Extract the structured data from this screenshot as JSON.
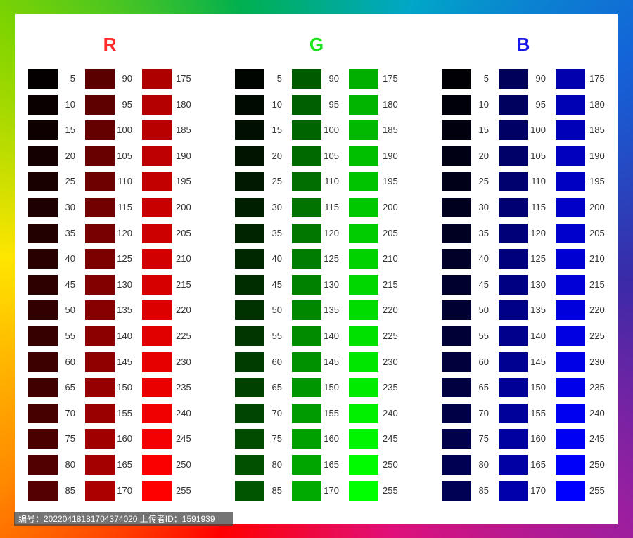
{
  "headers": [
    {
      "label": "R",
      "color": "#ff2a2a"
    },
    {
      "label": "G",
      "color": "#19e619"
    },
    {
      "label": "B",
      "color": "#1a1ae6"
    }
  ],
  "panels": [
    {
      "channel": "R",
      "columns": [
        {
          "values": [
            "5",
            "10",
            "15",
            "20",
            "25",
            "30",
            "35",
            "40",
            "45",
            "50",
            "55",
            "60",
            "65",
            "70",
            "75",
            "80",
            "85"
          ]
        },
        {
          "values": [
            "90",
            "95",
            "100",
            "105",
            "110",
            "115",
            "120",
            "125",
            "130",
            "135",
            "140",
            "145",
            "150",
            "155",
            "160",
            "165",
            "170"
          ]
        },
        {
          "values": [
            "175",
            "180",
            "185",
            "190",
            "195",
            "200",
            "205",
            "210",
            "215",
            "220",
            "225",
            "230",
            "235",
            "240",
            "245",
            "250",
            "255"
          ]
        }
      ]
    },
    {
      "channel": "G",
      "columns": [
        {
          "values": [
            "5",
            "10",
            "15",
            "20",
            "25",
            "30",
            "35",
            "40",
            "45",
            "50",
            "55",
            "60",
            "65",
            "70",
            "75",
            "80",
            "85"
          ]
        },
        {
          "values": [
            "90",
            "95",
            "100",
            "105",
            "110",
            "115",
            "120",
            "125",
            "130",
            "135",
            "140",
            "145",
            "150",
            "155",
            "160",
            "165",
            "170"
          ]
        },
        {
          "values": [
            "175",
            "180",
            "185",
            "190",
            "195",
            "200",
            "205",
            "210",
            "215",
            "220",
            "225",
            "230",
            "235",
            "240",
            "245",
            "250",
            "255"
          ]
        }
      ]
    },
    {
      "channel": "B",
      "columns": [
        {
          "values": [
            "5",
            "10",
            "15",
            "20",
            "25",
            "30",
            "35",
            "40",
            "45",
            "50",
            "55",
            "60",
            "65",
            "70",
            "75",
            "80",
            "85"
          ]
        },
        {
          "values": [
            "90",
            "95",
            "100",
            "105",
            "110",
            "115",
            "120",
            "125",
            "130",
            "135",
            "140",
            "145",
            "150",
            "155",
            "160",
            "165",
            "170"
          ]
        },
        {
          "values": [
            "175",
            "180",
            "185",
            "190",
            "195",
            "200",
            "205",
            "210",
            "215",
            "220",
            "225",
            "230",
            "235",
            "240",
            "245",
            "250",
            "255"
          ]
        }
      ]
    }
  ],
  "footer": {
    "text": "编号：20220418181704374020 上传者ID：1591939"
  }
}
